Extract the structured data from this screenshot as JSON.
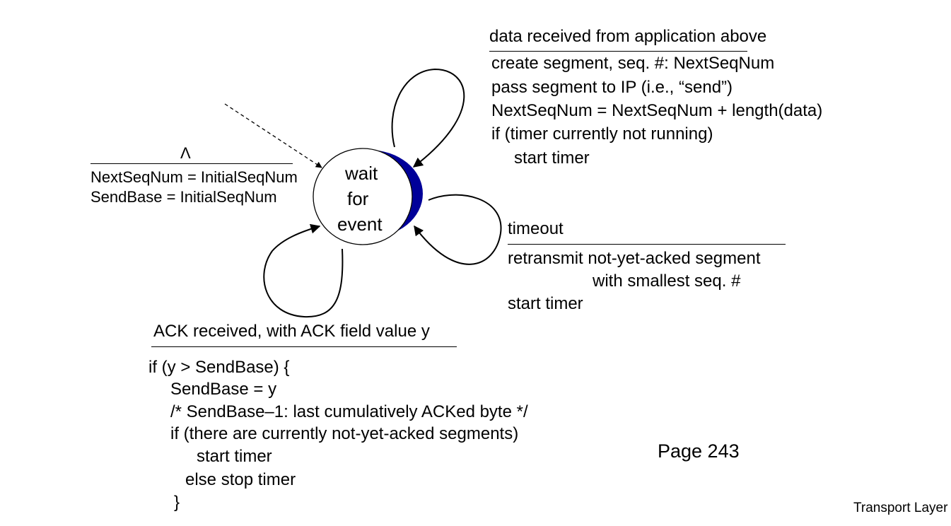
{
  "state": {
    "label_lines": [
      "wait",
      "for",
      "event"
    ]
  },
  "initial": {
    "event": "Λ",
    "actions": [
      "NextSeqNum = InitialSeqNum",
      "SendBase = InitialSeqNum"
    ]
  },
  "data_transition": {
    "event": "data received from application above",
    "actions": [
      "create segment, seq. #: NextSeqNum",
      "pass segment to IP (i.e., “send”)",
      "NextSeqNum = NextSeqNum + length(data)",
      "if (timer currently not running)",
      "start timer"
    ]
  },
  "timeout_transition": {
    "event": "timeout",
    "actions": [
      "retransmit not-yet-acked segment",
      "with smallest seq. #",
      "start timer"
    ]
  },
  "ack_transition": {
    "event": "ACK received, with ACK field value y",
    "actions": [
      "if (y > SendBase) {",
      "SendBase = y",
      "/* SendBase–1: last cumulatively ACKed byte */",
      "if (there are currently not-yet-acked segments)",
      "start timer",
      "else stop timer",
      "}"
    ]
  },
  "page_label": "Page 243",
  "footer": "Transport Layer",
  "colors": {
    "state_shadow": "#000099"
  }
}
